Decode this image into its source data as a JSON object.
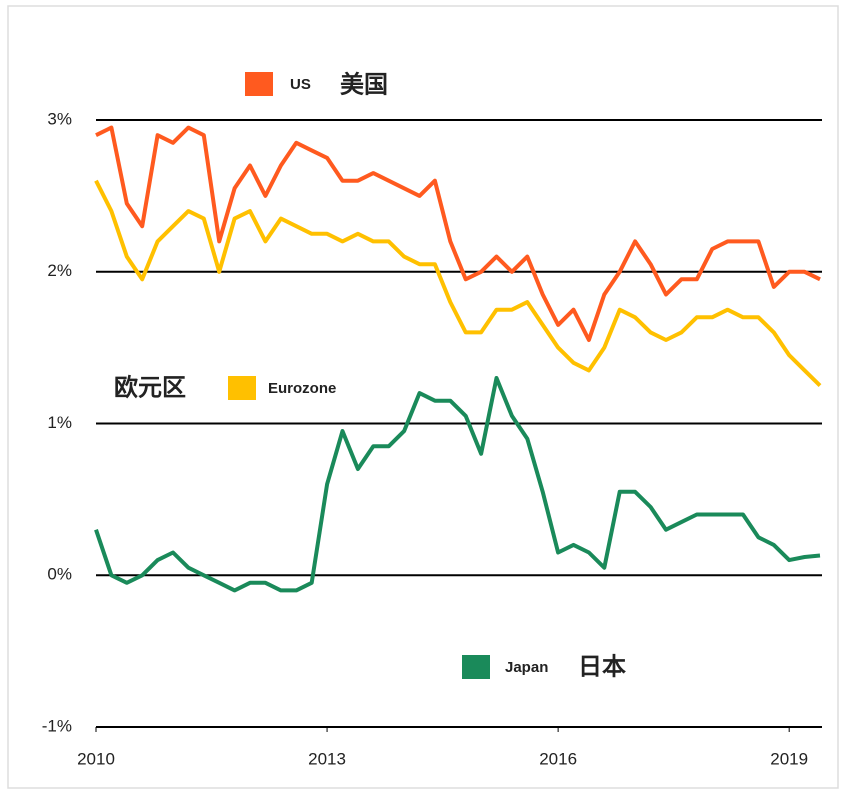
{
  "chart_data": {
    "type": "line",
    "x": [
      2010.0,
      2010.2,
      2010.4,
      2010.6,
      2010.8,
      2011.0,
      2011.2,
      2011.4,
      2011.6,
      2011.8,
      2012.0,
      2012.2,
      2012.4,
      2012.6,
      2012.8,
      2013.0,
      2013.2,
      2013.4,
      2013.6,
      2013.8,
      2014.0,
      2014.2,
      2014.4,
      2014.6,
      2014.8,
      2015.0,
      2015.2,
      2015.4,
      2015.6,
      2015.8,
      2016.0,
      2016.2,
      2016.4,
      2016.6,
      2016.8,
      2017.0,
      2017.2,
      2017.4,
      2017.6,
      2017.8,
      2018.0,
      2018.2,
      2018.4,
      2018.6,
      2018.8,
      2019.0,
      2019.2,
      2019.4
    ],
    "series": [
      {
        "name": "US",
        "name_cn": "美国",
        "color": "#ff5a1f",
        "values": [
          2.9,
          2.95,
          2.45,
          2.3,
          2.9,
          2.85,
          2.95,
          2.9,
          2.2,
          2.55,
          2.7,
          2.5,
          2.7,
          2.85,
          2.8,
          2.75,
          2.6,
          2.6,
          2.65,
          2.6,
          2.55,
          2.5,
          2.6,
          2.2,
          1.95,
          2.0,
          2.1,
          2.0,
          2.1,
          1.85,
          1.65,
          1.75,
          1.55,
          1.85,
          2.0,
          2.2,
          2.05,
          1.85,
          1.95,
          1.95,
          2.15,
          2.2,
          2.2,
          2.2,
          1.9,
          2.0,
          2.0,
          1.95
        ]
      },
      {
        "name": "Eurozone",
        "name_cn": "欧元区",
        "color": "#ffc000",
        "values": [
          2.6,
          2.4,
          2.1,
          1.95,
          2.2,
          2.3,
          2.4,
          2.35,
          2.0,
          2.35,
          2.4,
          2.2,
          2.35,
          2.3,
          2.25,
          2.25,
          2.2,
          2.25,
          2.2,
          2.2,
          2.1,
          2.05,
          2.05,
          1.8,
          1.6,
          1.6,
          1.75,
          1.75,
          1.8,
          1.65,
          1.5,
          1.4,
          1.35,
          1.5,
          1.75,
          1.7,
          1.6,
          1.55,
          1.6,
          1.7,
          1.7,
          1.75,
          1.7,
          1.7,
          1.6,
          1.45,
          1.35,
          1.25
        ]
      },
      {
        "name": "Japan",
        "name_cn": "日本",
        "color": "#1a8a5a",
        "values": [
          0.3,
          0.0,
          -0.05,
          0.0,
          0.1,
          0.15,
          0.05,
          0.0,
          -0.05,
          -0.1,
          -0.05,
          -0.05,
          -0.1,
          -0.1,
          -0.05,
          0.6,
          0.95,
          0.7,
          0.85,
          0.85,
          0.95,
          1.2,
          1.15,
          1.15,
          1.05,
          0.8,
          1.3,
          1.05,
          0.9,
          0.55,
          0.15,
          0.2,
          0.15,
          0.05,
          0.55,
          0.55,
          0.45,
          0.3,
          0.35,
          0.4,
          0.4,
          0.4,
          0.4,
          0.25,
          0.2,
          0.1,
          0.12,
          0.13
        ]
      }
    ],
    "xlim": [
      2010,
      2019.4
    ],
    "xticks": [
      2010,
      2013,
      2016,
      2019
    ],
    "ylim": [
      -1,
      3
    ],
    "yticks": [
      {
        "value": -1,
        "label": "-1%"
      },
      {
        "value": 0,
        "label": "0%"
      },
      {
        "value": 1,
        "label": "1%"
      },
      {
        "value": 2,
        "label": "2%"
      },
      {
        "value": 3,
        "label": "3%"
      }
    ],
    "grid": true
  }
}
